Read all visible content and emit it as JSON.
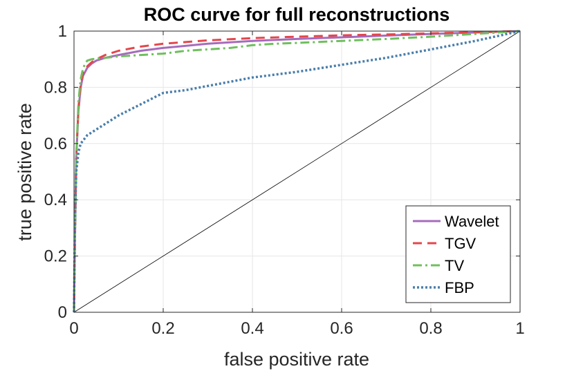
{
  "chart_data": {
    "type": "line",
    "title": "ROC curve for full reconstructions",
    "xlabel": "false positive rate",
    "ylabel": "true positive rate",
    "xlim": [
      0,
      1
    ],
    "ylim": [
      0,
      1
    ],
    "xticks": [
      0,
      0.2,
      0.4,
      0.6,
      0.8,
      1
    ],
    "yticks": [
      0,
      0.2,
      0.4,
      0.6,
      0.8,
      1
    ],
    "xtick_labels": [
      "0",
      "0.2",
      "0.4",
      "0.6",
      "0.8",
      "1"
    ],
    "ytick_labels": [
      "0",
      "0.2",
      "0.4",
      "0.6",
      "0.8",
      "1"
    ],
    "grid": true,
    "legend_position": "bottom-right",
    "reference_line": {
      "x": [
        0,
        1
      ],
      "y": [
        0,
        1
      ],
      "color": "#000000"
    },
    "series": [
      {
        "name": "Wavelet",
        "color": "#a66bbd",
        "style": "solid",
        "x": [
          0,
          0.002,
          0.005,
          0.01,
          0.015,
          0.02,
          0.03,
          0.04,
          0.05,
          0.07,
          0.1,
          0.15,
          0.2,
          0.3,
          0.4,
          0.5,
          0.6,
          0.7,
          0.8,
          0.9,
          1.0
        ],
        "y": [
          0,
          0.25,
          0.55,
          0.72,
          0.8,
          0.84,
          0.87,
          0.885,
          0.895,
          0.905,
          0.915,
          0.93,
          0.94,
          0.955,
          0.965,
          0.972,
          0.978,
          0.984,
          0.99,
          0.995,
          1.0
        ]
      },
      {
        "name": "TGV",
        "color": "#e3464b",
        "style": "dashed",
        "x": [
          0,
          0.002,
          0.005,
          0.01,
          0.015,
          0.02,
          0.03,
          0.04,
          0.05,
          0.07,
          0.1,
          0.15,
          0.2,
          0.3,
          0.4,
          0.5,
          0.6,
          0.7,
          0.8,
          0.9,
          1.0
        ],
        "y": [
          0,
          0.25,
          0.55,
          0.73,
          0.81,
          0.85,
          0.875,
          0.89,
          0.9,
          0.915,
          0.93,
          0.945,
          0.955,
          0.967,
          0.975,
          0.98,
          0.985,
          0.988,
          0.992,
          0.996,
          1.0
        ]
      },
      {
        "name": "TV",
        "color": "#6fbf5e",
        "style": "dashdot",
        "x": [
          0,
          0.002,
          0.005,
          0.01,
          0.015,
          0.02,
          0.025,
          0.03,
          0.04,
          0.05,
          0.07,
          0.1,
          0.15,
          0.2,
          0.25,
          0.3,
          0.35,
          0.4,
          0.45,
          0.5,
          0.6,
          0.7,
          0.8,
          0.9,
          1.0
        ],
        "y": [
          0,
          0.25,
          0.55,
          0.75,
          0.83,
          0.865,
          0.885,
          0.895,
          0.9,
          0.902,
          0.905,
          0.91,
          0.915,
          0.92,
          0.93,
          0.935,
          0.94,
          0.95,
          0.955,
          0.958,
          0.965,
          0.972,
          0.98,
          0.99,
          1.0
        ]
      },
      {
        "name": "FBP",
        "color": "#4a7eab",
        "style": "dotted",
        "x": [
          0,
          0.002,
          0.005,
          0.01,
          0.015,
          0.02,
          0.03,
          0.05,
          0.07,
          0.1,
          0.15,
          0.2,
          0.25,
          0.3,
          0.35,
          0.4,
          0.5,
          0.6,
          0.7,
          0.8,
          0.9,
          1.0
        ],
        "y": [
          0,
          0.3,
          0.5,
          0.57,
          0.6,
          0.61,
          0.63,
          0.65,
          0.67,
          0.7,
          0.74,
          0.78,
          0.79,
          0.805,
          0.82,
          0.835,
          0.855,
          0.88,
          0.905,
          0.935,
          0.965,
          1.0
        ]
      }
    ]
  }
}
